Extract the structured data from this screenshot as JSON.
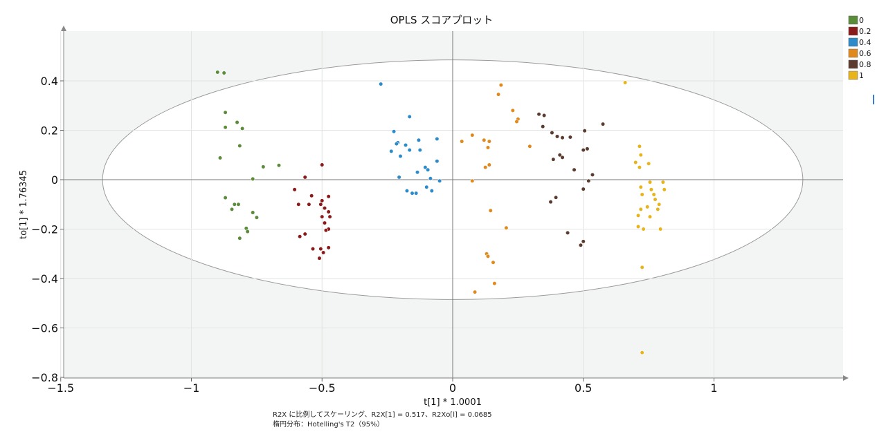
{
  "chart_data": {
    "type": "scatter",
    "title": "OPLS スコアプロット",
    "xlabel": "t[1] * 1.0001",
    "ylabel": "to[1] * 1.76345",
    "xlim": [
      -1.5,
      1.5
    ],
    "ylim": [
      -0.8,
      0.6
    ],
    "x_ticks": [
      -1.5,
      -1,
      -0.5,
      0,
      0.5,
      1
    ],
    "x_tick_labels": [
      "−1.5",
      "−1",
      "−0.5",
      "0",
      "0.5",
      "1"
    ],
    "y_ticks": [
      -0.8,
      -0.6,
      -0.4,
      -0.2,
      0,
      0.2,
      0.4
    ],
    "y_tick_labels": [
      "−0.8",
      "−0.6",
      "−0.4",
      "−0.2",
      "0",
      "0.2",
      "0.4"
    ],
    "grid": true,
    "legend_position": "top-right",
    "ellipse": {
      "center": [
        0,
        0
      ],
      "rx": 1.34,
      "ry": 0.485
    },
    "notes": [
      "R2X に比例してスケーリング、R2X[1] = 0.517、R2Xo[l] = 0.0685",
      "楕円分布：Hotelling's T2（95%）"
    ],
    "series": [
      {
        "name": "0",
        "color": "#5b8c3a",
        "points": [
          [
            -0.9,
            0.435
          ],
          [
            -0.875,
            0.432
          ],
          [
            -0.87,
            0.272
          ],
          [
            -0.825,
            0.232
          ],
          [
            -0.87,
            0.212
          ],
          [
            -0.805,
            0.207
          ],
          [
            -0.815,
            0.137
          ],
          [
            -0.89,
            0.088
          ],
          [
            -0.725,
            0.052
          ],
          [
            -0.665,
            0.058
          ],
          [
            -0.765,
            0.003
          ],
          [
            -0.87,
            -0.073
          ],
          [
            -0.82,
            -0.1
          ],
          [
            -0.835,
            -0.1
          ],
          [
            -0.845,
            -0.12
          ],
          [
            -0.765,
            -0.133
          ],
          [
            -0.75,
            -0.153
          ],
          [
            -0.79,
            -0.197
          ],
          [
            -0.785,
            -0.21
          ],
          [
            -0.815,
            -0.237
          ]
        ]
      },
      {
        "name": "0.2",
        "color": "#8b1a1a",
        "points": [
          [
            -0.5,
            0.06
          ],
          [
            -0.565,
            0.01
          ],
          [
            -0.605,
            -0.04
          ],
          [
            -0.54,
            -0.065
          ],
          [
            -0.475,
            -0.068
          ],
          [
            -0.5,
            -0.085
          ],
          [
            -0.59,
            -0.1
          ],
          [
            -0.55,
            -0.1
          ],
          [
            -0.505,
            -0.1
          ],
          [
            -0.49,
            -0.115
          ],
          [
            -0.475,
            -0.13
          ],
          [
            -0.5,
            -0.15
          ],
          [
            -0.47,
            -0.15
          ],
          [
            -0.49,
            -0.175
          ],
          [
            -0.475,
            -0.2
          ],
          [
            -0.485,
            -0.205
          ],
          [
            -0.565,
            -0.22
          ],
          [
            -0.585,
            -0.23
          ],
          [
            -0.535,
            -0.28
          ],
          [
            -0.505,
            -0.28
          ],
          [
            -0.475,
            -0.275
          ],
          [
            -0.495,
            -0.295
          ],
          [
            -0.51,
            -0.318
          ]
        ]
      },
      {
        "name": "0.4",
        "color": "#2e8bc9",
        "points": [
          [
            -0.275,
            0.387
          ],
          [
            -0.165,
            0.255
          ],
          [
            -0.225,
            0.195
          ],
          [
            -0.21,
            0.15
          ],
          [
            -0.215,
            0.145
          ],
          [
            -0.18,
            0.14
          ],
          [
            -0.13,
            0.16
          ],
          [
            -0.06,
            0.165
          ],
          [
            -0.165,
            0.12
          ],
          [
            -0.235,
            0.115
          ],
          [
            -0.2,
            0.095
          ],
          [
            -0.125,
            0.12
          ],
          [
            -0.06,
            0.075
          ],
          [
            -0.105,
            0.05
          ],
          [
            -0.095,
            0.04
          ],
          [
            -0.135,
            0.03
          ],
          [
            -0.205,
            0.01
          ],
          [
            -0.085,
            0.005
          ],
          [
            -0.05,
            -0.005
          ],
          [
            -0.1,
            -0.03
          ],
          [
            -0.175,
            -0.045
          ],
          [
            -0.155,
            -0.055
          ],
          [
            -0.14,
            -0.055
          ],
          [
            -0.08,
            -0.045
          ]
        ]
      },
      {
        "name": "0.6",
        "color": "#e08a1e",
        "points": [
          [
            0.185,
            0.383
          ],
          [
            0.175,
            0.345
          ],
          [
            0.23,
            0.28
          ],
          [
            0.25,
            0.245
          ],
          [
            0.245,
            0.235
          ],
          [
            0.075,
            0.18
          ],
          [
            0.12,
            0.16
          ],
          [
            0.035,
            0.155
          ],
          [
            0.14,
            0.155
          ],
          [
            0.135,
            0.13
          ],
          [
            0.295,
            0.135
          ],
          [
            0.125,
            0.05
          ],
          [
            0.14,
            0.06
          ],
          [
            0.075,
            -0.005
          ],
          [
            0.145,
            -0.125
          ],
          [
            0.205,
            -0.195
          ],
          [
            0.13,
            -0.3
          ],
          [
            0.135,
            -0.31
          ],
          [
            0.155,
            -0.335
          ],
          [
            0.085,
            -0.455
          ],
          [
            0.16,
            -0.42
          ]
        ]
      },
      {
        "name": "0.8",
        "color": "#5a3b2e",
        "points": [
          [
            0.33,
            0.265
          ],
          [
            0.35,
            0.26
          ],
          [
            0.575,
            0.225
          ],
          [
            0.505,
            0.198
          ],
          [
            0.345,
            0.215
          ],
          [
            0.38,
            0.19
          ],
          [
            0.4,
            0.175
          ],
          [
            0.42,
            0.17
          ],
          [
            0.45,
            0.172
          ],
          [
            0.515,
            0.125
          ],
          [
            0.5,
            0.12
          ],
          [
            0.41,
            0.1
          ],
          [
            0.42,
            0.09
          ],
          [
            0.385,
            0.082
          ],
          [
            0.465,
            0.04
          ],
          [
            0.535,
            0.02
          ],
          [
            0.52,
            -0.005
          ],
          [
            0.5,
            -0.038
          ],
          [
            0.395,
            -0.072
          ],
          [
            0.375,
            -0.09
          ],
          [
            0.44,
            -0.215
          ],
          [
            0.5,
            -0.25
          ],
          [
            0.49,
            -0.265
          ]
        ]
      },
      {
        "name": "1",
        "color": "#e8b41c",
        "points": [
          [
            0.66,
            0.393
          ],
          [
            0.715,
            0.135
          ],
          [
            0.72,
            0.1
          ],
          [
            0.7,
            0.07
          ],
          [
            0.75,
            0.065
          ],
          [
            0.715,
            0.05
          ],
          [
            0.805,
            -0.01
          ],
          [
            0.755,
            -0.01
          ],
          [
            0.72,
            -0.03
          ],
          [
            0.76,
            -0.04
          ],
          [
            0.81,
            -0.04
          ],
          [
            0.725,
            -0.06
          ],
          [
            0.77,
            -0.06
          ],
          [
            0.775,
            -0.08
          ],
          [
            0.79,
            -0.1
          ],
          [
            0.745,
            -0.11
          ],
          [
            0.785,
            -0.12
          ],
          [
            0.72,
            -0.12
          ],
          [
            0.755,
            -0.15
          ],
          [
            0.71,
            -0.145
          ],
          [
            0.71,
            -0.19
          ],
          [
            0.73,
            -0.2
          ],
          [
            0.795,
            -0.2
          ],
          [
            0.725,
            -0.355
          ],
          [
            0.725,
            -0.7
          ]
        ]
      }
    ]
  }
}
